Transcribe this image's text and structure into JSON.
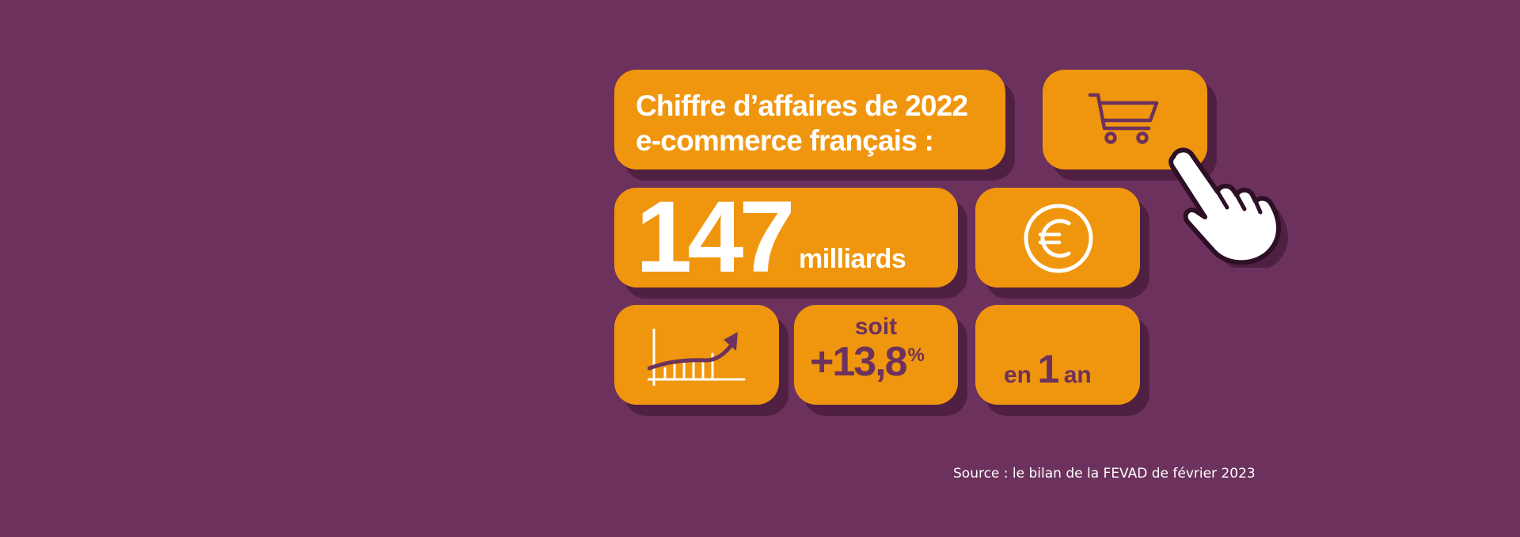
{
  "headline": {
    "line1": "Chiffre d’affaires de 2022",
    "line2": "e-commerce français :"
  },
  "value": {
    "amount": "147",
    "unit": "milliards"
  },
  "growth": {
    "prefix": "soit",
    "value": "+13,8",
    "sign": "%"
  },
  "period": {
    "word1": "en",
    "number": "1",
    "word2": "an"
  },
  "source": "Source : le bilan de la FEVAD de février 2023",
  "icons": [
    "shopping-cart-icon",
    "pointing-hand-icon",
    "euro-icon",
    "growth-chart-icon"
  ],
  "colors": {
    "background": "#6c325d",
    "tile": "#f0960e",
    "shadow": "#4f2042",
    "text_light": "#ffffff",
    "text_dark": "#6c325d"
  }
}
